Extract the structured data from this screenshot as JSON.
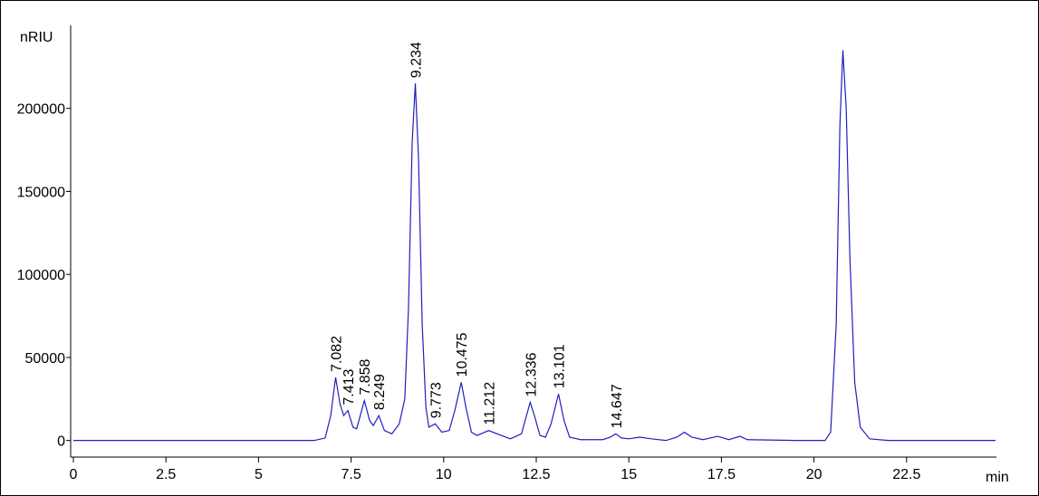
{
  "chart_data": {
    "type": "line",
    "ylabel": "nRIU",
    "xlabel": "min",
    "xlim": [
      0,
      25
    ],
    "ylim": [
      -10000,
      250000
    ],
    "xticks": [
      0,
      2.5,
      5,
      7.5,
      10,
      12.5,
      15,
      17.5,
      20,
      22.5
    ],
    "yticks": [
      0,
      50000,
      100000,
      150000,
      200000
    ],
    "color": "#1f1fbf",
    "x": [
      0,
      6.5,
      6.8,
      6.95,
      7.082,
      7.2,
      7.3,
      7.413,
      7.55,
      7.65,
      7.858,
      8.0,
      8.1,
      8.249,
      8.4,
      8.6,
      8.8,
      8.95,
      9.05,
      9.15,
      9.234,
      9.32,
      9.42,
      9.52,
      9.6,
      9.773,
      9.95,
      10.15,
      10.3,
      10.475,
      10.6,
      10.75,
      10.9,
      11.212,
      11.5,
      11.8,
      12.1,
      12.2,
      12.336,
      12.45,
      12.6,
      12.75,
      12.9,
      13.101,
      13.25,
      13.4,
      13.7,
      14.3,
      14.5,
      14.647,
      14.8,
      15.0,
      15.3,
      15.6,
      16.0,
      16.3,
      16.5,
      16.7,
      17.0,
      17.4,
      17.7,
      18.0,
      18.2,
      19.5,
      20.3,
      20.45,
      20.6,
      20.7,
      20.78,
      20.87,
      20.97,
      21.1,
      21.25,
      21.5,
      22,
      24.9
    ],
    "values": [
      0,
      0,
      1500,
      15000,
      38000,
      22000,
      15000,
      18000,
      8000,
      7000,
      24000,
      12000,
      9000,
      15000,
      6000,
      4000,
      10000,
      25000,
      80000,
      180000,
      215000,
      170000,
      70000,
      20000,
      8000,
      10000,
      5000,
      6000,
      18000,
      35000,
      20000,
      5000,
      3000,
      6000,
      3500,
      1000,
      4000,
      12000,
      23000,
      15000,
      3000,
      2000,
      10000,
      28000,
      12000,
      2000,
      500,
      500,
      2000,
      4000,
      1500,
      1000,
      2000,
      1000,
      0,
      2000,
      5000,
      2000,
      500,
      2500,
      500,
      2500,
      500,
      0,
      0,
      5000,
      70000,
      190000,
      235000,
      200000,
      110000,
      35000,
      8000,
      1000,
      0,
      0
    ],
    "peaks": [
      {
        "x": 7.082,
        "y": 38000
      },
      {
        "x": 7.413,
        "y": 18000
      },
      {
        "x": 7.858,
        "y": 24000
      },
      {
        "x": 8.249,
        "y": 15000
      },
      {
        "x": 9.234,
        "y": 215000
      },
      {
        "x": 9.773,
        "y": 10000
      },
      {
        "x": 10.475,
        "y": 35000
      },
      {
        "x": 11.212,
        "y": 6000
      },
      {
        "x": 12.336,
        "y": 23000
      },
      {
        "x": 13.101,
        "y": 28000
      },
      {
        "x": 14.647,
        "y": 4000
      }
    ]
  }
}
